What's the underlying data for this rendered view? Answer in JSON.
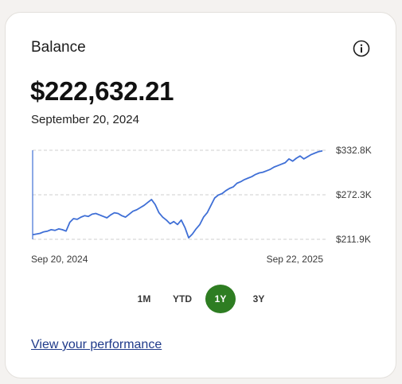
{
  "card": {
    "title": "Balance",
    "info_icon": "info-circle-icon",
    "balance": "$222,632.21",
    "as_of_date": "September 20, 2024",
    "link_label": "View your performance"
  },
  "colors": {
    "line": "#3f6fd6",
    "active_range_bg": "#2e7d22",
    "link": "#1f3a8a",
    "grid": "#cfcfcf"
  },
  "range_selector": {
    "options": [
      "1M",
      "YTD",
      "1Y",
      "3Y"
    ],
    "selected": "1Y"
  },
  "chart_data": {
    "type": "line",
    "title": "",
    "xlabel": "",
    "ylabel": "",
    "x_tick_labels": [
      "Sep 20, 2024",
      "Sep 22, 2025"
    ],
    "y_tick_labels": [
      "$332.8K",
      "$272.3K",
      "$211.9K"
    ],
    "ylim": [
      211.9,
      332.8
    ],
    "grid": true,
    "series": [
      {
        "values": [
          218,
          219,
          220,
          222,
          223,
          225,
          224,
          226,
          225,
          223,
          235,
          240,
          239,
          242,
          244,
          243,
          246,
          247,
          245,
          243,
          241,
          245,
          248,
          247,
          244,
          242,
          246,
          250,
          252,
          255,
          258,
          262,
          266,
          259,
          248,
          242,
          238,
          233,
          236,
          232,
          238,
          228,
          214,
          219,
          226,
          232,
          242,
          248,
          258,
          268,
          272,
          274,
          278,
          281,
          283,
          288,
          290,
          293,
          295,
          297,
          300,
          302,
          303,
          305,
          307,
          310,
          312,
          314,
          316,
          321,
          318,
          322,
          325,
          321,
          324,
          327,
          329,
          331,
          332
        ]
      }
    ]
  }
}
